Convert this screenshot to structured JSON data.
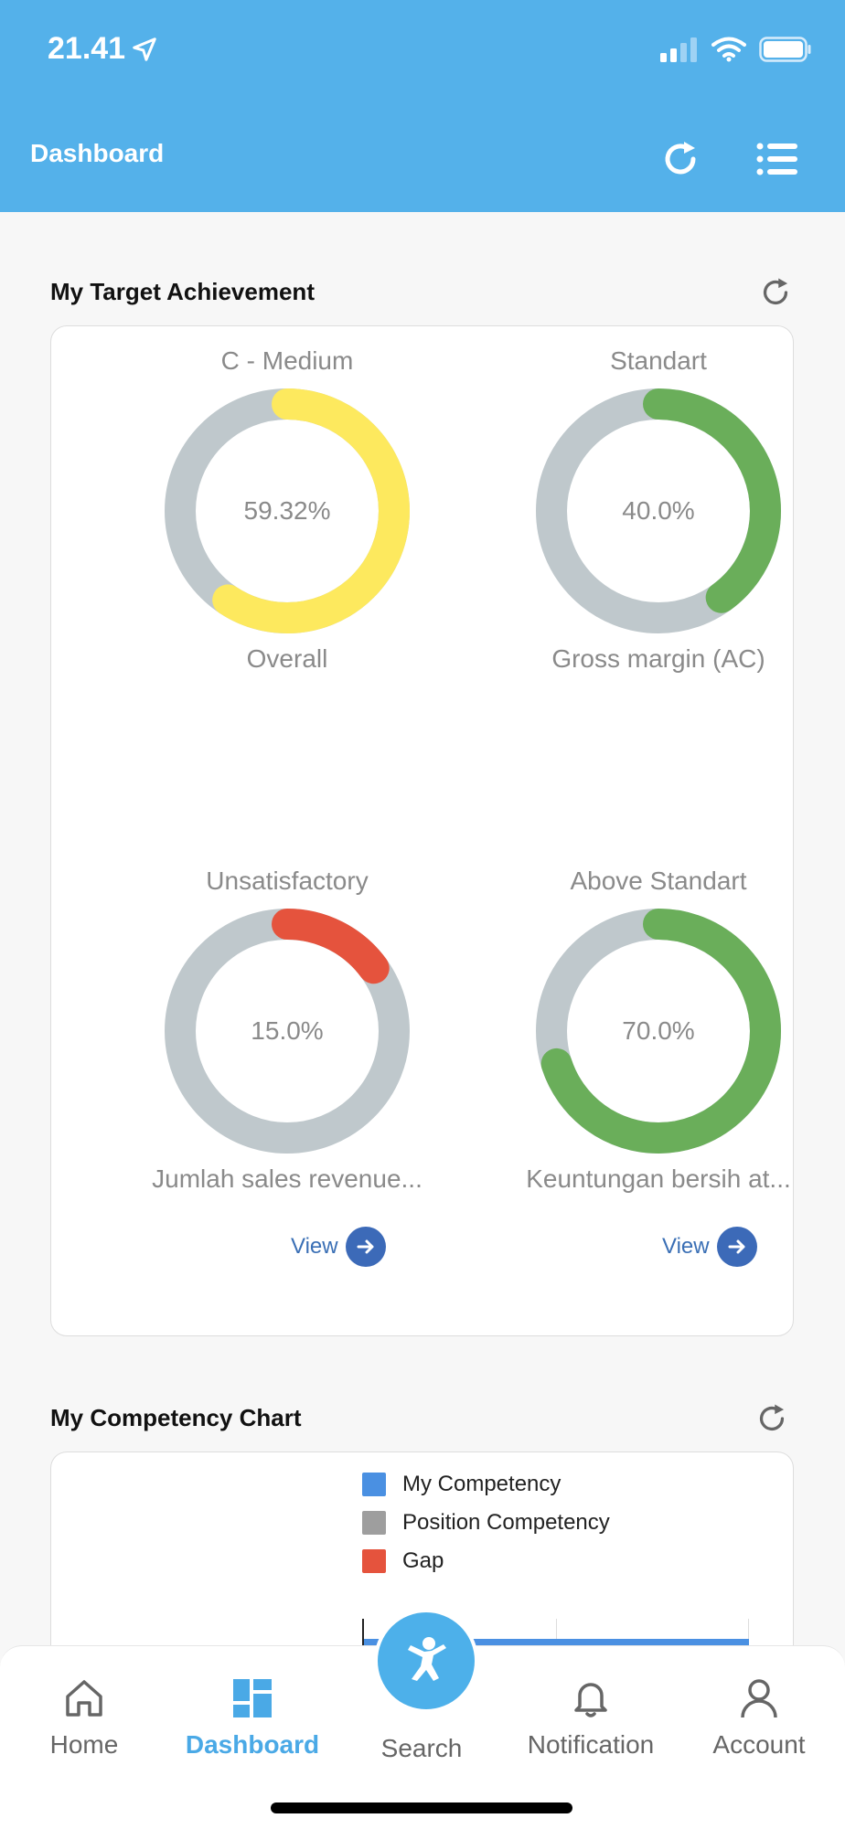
{
  "status_bar": {
    "time": "21.41"
  },
  "header": {
    "title": "Dashboard",
    "refresh_icon": "refresh-icon",
    "menu_icon": "list-menu-icon"
  },
  "target_section": {
    "title": "My Target Achievement",
    "donuts": [
      {
        "label_top": "C - Medium",
        "value": "59.32%",
        "fraction": 0.5932,
        "label_bottom": "Overall",
        "color": "#fde95e"
      },
      {
        "label_top": "Standart",
        "value": "40.0%",
        "fraction": 0.4,
        "label_bottom": "Gross margin (AC)",
        "color": "#6aae5a"
      },
      {
        "label_top": "Unsatisfactory",
        "value": "15.0%",
        "fraction": 0.15,
        "label_bottom": "Jumlah sales revenue...",
        "color": "#e5533d"
      },
      {
        "label_top": "Above Standart",
        "value": "70.0%",
        "fraction": 0.7,
        "label_bottom": "Keuntungan bersih at...",
        "color": "#6aae5a"
      }
    ],
    "view_label": "View"
  },
  "competency_section": {
    "title": "My Competency Chart",
    "legend": [
      {
        "label": "My Competency",
        "color": "#4a90e2"
      },
      {
        "label": "Position Competency",
        "color": "#9e9e9e"
      },
      {
        "label": "Gap",
        "color": "#e5533d"
      }
    ]
  },
  "bottom_nav": {
    "items": [
      {
        "label": "Home",
        "icon": "home-icon"
      },
      {
        "label": "Dashboard",
        "icon": "dashboard-icon",
        "active": true
      },
      {
        "label": "Search",
        "icon": "search-logo-icon"
      },
      {
        "label": "Notification",
        "icon": "bell-icon"
      },
      {
        "label": "Account",
        "icon": "user-icon"
      }
    ]
  },
  "colors": {
    "primary": "#54b1ea",
    "ring_track": "#bfc8cc",
    "link": "#3a6fb5"
  }
}
